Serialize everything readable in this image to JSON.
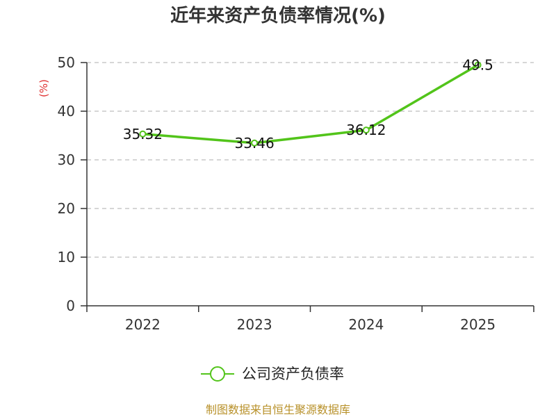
{
  "chart_data": {
    "type": "line",
    "title": "近年来资产负债率情况(%)",
    "ylabel": "(%)",
    "xlabel": "",
    "categories": [
      "2022",
      "2023",
      "2024",
      "2025"
    ],
    "series": [
      {
        "name": "公司资产负债率",
        "values": [
          35.32,
          33.46,
          36.12,
          49.5
        ],
        "labels": [
          "35.32",
          "33.46",
          "36.12",
          "49.5"
        ],
        "color": "#52c41a"
      }
    ],
    "ylim": [
      0,
      50
    ],
    "yticks": [
      "0",
      "10",
      "20",
      "30",
      "40",
      "50"
    ],
    "grid": true,
    "legend": "bottom"
  },
  "source": "制图数据来自恒生聚源数据库"
}
